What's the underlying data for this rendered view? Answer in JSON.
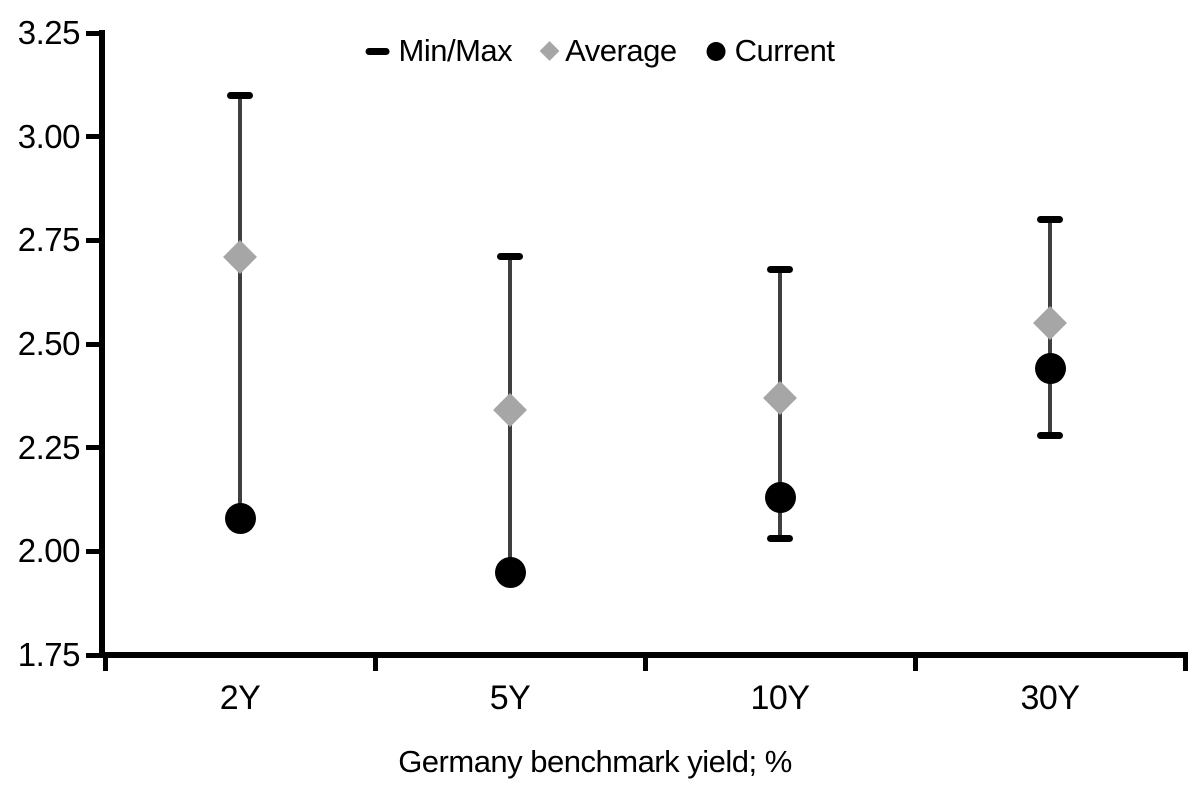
{
  "chart_data": {
    "type": "scatter",
    "subtype": "min-max-range-with-markers",
    "title": "",
    "xlabel": "Germany benchmark yield; %",
    "ylabel": "",
    "categories": [
      "2Y",
      "5Y",
      "10Y",
      "30Y"
    ],
    "ylim": [
      1.75,
      3.25
    ],
    "ytick_step": 0.25,
    "yticks": [
      {
        "value": 1.75,
        "label": "1.75"
      },
      {
        "value": 2.0,
        "label": "2.00"
      },
      {
        "value": 2.25,
        "label": "2.25"
      },
      {
        "value": 2.5,
        "label": "2.50"
      },
      {
        "value": 2.75,
        "label": "2.75"
      },
      {
        "value": 3.0,
        "label": "3.00"
      },
      {
        "value": 3.25,
        "label": "3.25"
      }
    ],
    "grid": false,
    "legend_position": "top-center",
    "series": [
      {
        "name": "Min/Max",
        "type": "range",
        "marker": "dash-caps",
        "max": [
          3.1,
          2.71,
          2.68,
          2.8
        ],
        "min": [
          2.08,
          1.95,
          2.03,
          2.28
        ]
      },
      {
        "name": "Average",
        "type": "diamond",
        "marker": "diamond",
        "values": [
          2.71,
          2.34,
          2.37,
          2.55
        ]
      },
      {
        "name": "Current",
        "type": "circle",
        "marker": "circle",
        "values": [
          2.08,
          1.95,
          2.13,
          2.44
        ]
      }
    ],
    "colors": {
      "min_max_caps": "#000000",
      "range_line": "#3f3f3f",
      "average_marker": "#a6a6a6",
      "current_marker": "#000000",
      "axis": "#000000",
      "text": "#000000",
      "background": "#ffffff"
    },
    "notes": "For 2Y and 5Y the current value sits at the period minimum (bottom cap hidden behind the circle marker)."
  }
}
